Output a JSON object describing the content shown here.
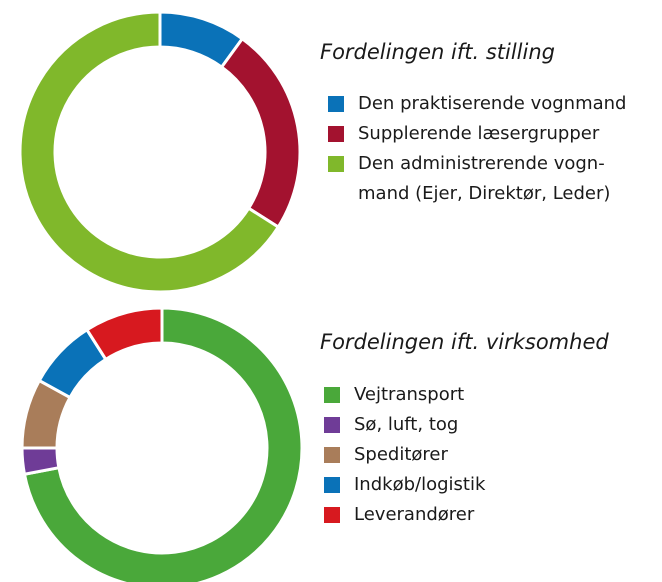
{
  "chart_data": [
    {
      "type": "donut",
      "title": "Fordelingen ift. stilling",
      "categories": [
        "Den praktiserende vognmand",
        "Supplerende læsergrupper",
        "Den administrerende vogn-\nmand (Ejer, Direktør, Leder)"
      ],
      "values": [
        10,
        24,
        66
      ],
      "colors": [
        "#0a72b8",
        "#a3122f",
        "#80b82b"
      ]
    },
    {
      "type": "donut",
      "title": "Fordelingen ift. virksomhed",
      "categories": [
        "Vejtransport",
        "Sø, luft, tog",
        "Speditører",
        "Indkøb/logistik",
        "Leverandører"
      ],
      "values": [
        72,
        3,
        8,
        8,
        9
      ],
      "colors": [
        "#4aa83a",
        "#6f3c97",
        "#a97d5a",
        "#0a72b8",
        "#d7191f"
      ]
    }
  ]
}
